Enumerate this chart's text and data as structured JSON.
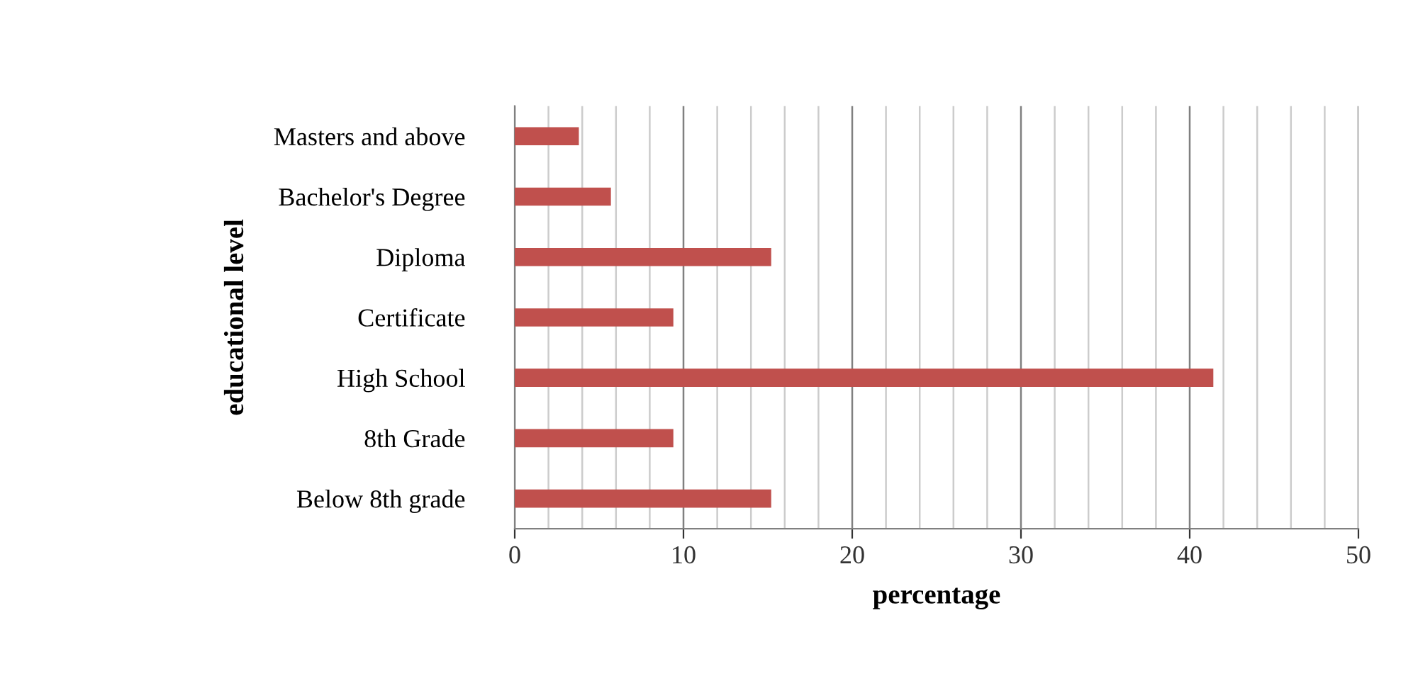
{
  "chart_data": {
    "type": "bar",
    "orientation": "horizontal",
    "xlabel": "percentage",
    "ylabel": "educational level",
    "categories": [
      "Masters and above",
      "Bachelor's Degree",
      "Diploma",
      "Certificate",
      "High School",
      "8th Grade",
      "Below 8th grade"
    ],
    "values": [
      3.8,
      5.7,
      15.2,
      9.4,
      41.4,
      9.4,
      15.2
    ],
    "color": "#c0504d",
    "xlim": [
      0,
      50
    ],
    "xticks": [
      0,
      {
        "value": 2,
        "label": null
      },
      {
        "value": 4,
        "label": null
      },
      {
        "value": 6,
        "label": null
      },
      {
        "value": 8,
        "label": null
      },
      10,
      {
        "value": 12,
        "label": null
      },
      {
        "value": 14,
        "label": null
      },
      {
        "value": 16,
        "label": null
      },
      {
        "value": 18,
        "label": null
      },
      20,
      {
        "value": 22,
        "label": null
      },
      {
        "value": 24,
        "label": null
      },
      {
        "value": 26,
        "label": null
      },
      {
        "value": 28,
        "label": null
      },
      30,
      {
        "value": 32,
        "label": null
      },
      {
        "value": 34,
        "label": null
      },
      {
        "value": 36,
        "label": null
      },
      {
        "value": 38,
        "label": null
      },
      40,
      {
        "value": 42,
        "label": null
      },
      {
        "value": 44,
        "label": null
      },
      {
        "value": 46,
        "label": null
      },
      {
        "value": 48,
        "label": null
      },
      50
    ],
    "grid": "x",
    "legend": false
  }
}
